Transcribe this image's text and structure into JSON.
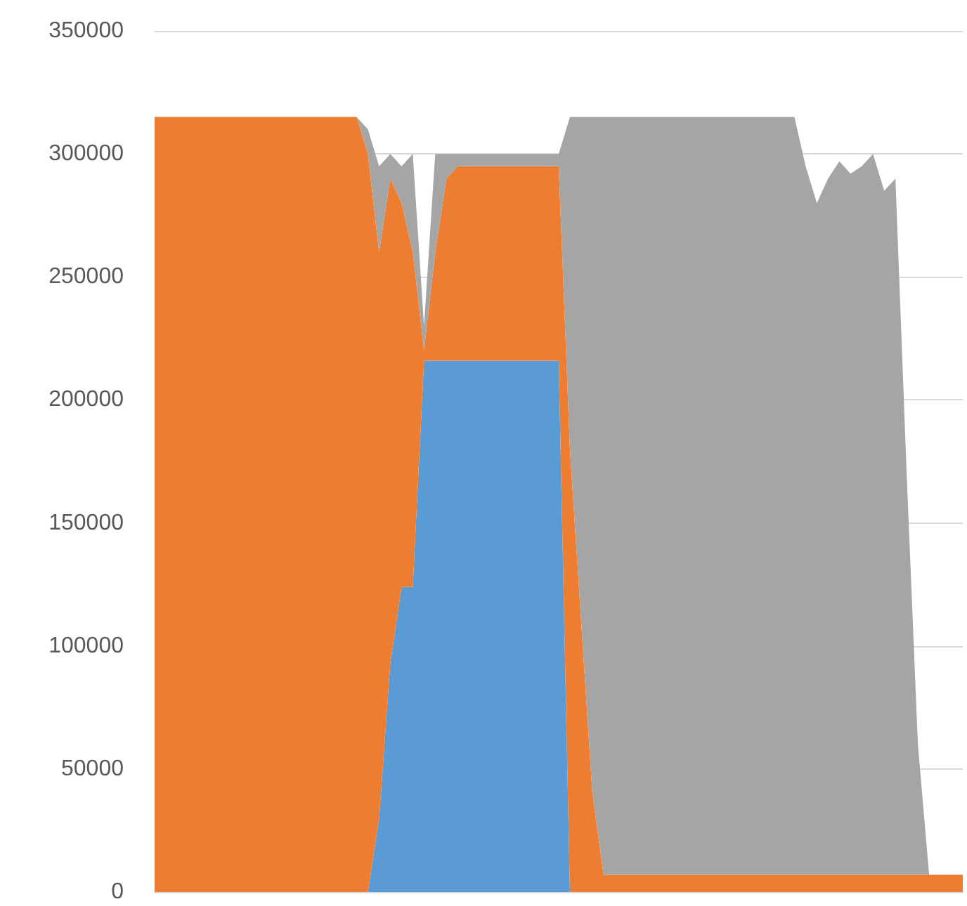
{
  "chart_data": {
    "type": "area",
    "stacked": true,
    "grid": "y",
    "marker": "none",
    "categories": [
      null,
      null,
      null,
      null,
      null,
      null,
      null,
      null,
      null,
      null,
      null,
      null,
      null,
      null,
      null,
      null,
      null,
      null,
      null,
      null,
      null,
      null,
      null,
      null,
      null,
      null,
      null,
      null,
      null,
      null,
      null,
      null,
      null,
      null,
      null,
      null,
      null,
      null,
      null,
      null,
      null,
      null,
      null,
      null,
      null,
      null,
      null,
      null,
      null,
      null,
      null,
      null,
      null,
      null,
      null,
      null,
      null,
      null,
      null,
      null,
      null,
      null,
      null,
      null,
      null,
      null,
      null,
      null,
      null,
      null,
      null,
      null,
      null
    ],
    "ylim": [
      0,
      350000
    ],
    "yticks": [
      0,
      50000,
      100000,
      150000,
      200000,
      250000,
      300000,
      350000
    ],
    "series": [
      {
        "color": "#5b9bd5",
        "values": [
          0,
          0,
          0,
          0,
          0,
          0,
          0,
          0,
          0,
          0,
          0,
          0,
          0,
          0,
          0,
          0,
          0,
          0,
          0,
          0,
          30000,
          93000,
          124000,
          124000,
          216000,
          216000,
          216000,
          216000,
          216000,
          216000,
          216000,
          216000,
          216000,
          216000,
          216000,
          216000,
          216000,
          0,
          0,
          0,
          0,
          0,
          0,
          0,
          0,
          0,
          0,
          0,
          0,
          0,
          0,
          0,
          0,
          0,
          0,
          0,
          0,
          0,
          0,
          0,
          0,
          0,
          0,
          0,
          0,
          0,
          0,
          0,
          0,
          0,
          0,
          0,
          0
        ]
      },
      {
        "color": "#ed7d31",
        "values": [
          315000,
          315000,
          315000,
          315000,
          315000,
          315000,
          315000,
          315000,
          315000,
          315000,
          315000,
          315000,
          315000,
          315000,
          315000,
          315000,
          315000,
          315000,
          315000,
          300000,
          230000,
          197000,
          156000,
          136000,
          4000,
          44000,
          74000,
          79000,
          79000,
          79000,
          79000,
          79000,
          79000,
          79000,
          79000,
          79000,
          79000,
          180000,
          110000,
          40000,
          7000,
          7000,
          7000,
          7000,
          7000,
          7000,
          7000,
          7000,
          7000,
          7000,
          7000,
          7000,
          7000,
          7000,
          7000,
          7000,
          7000,
          7000,
          7000,
          7000,
          7000,
          7000,
          7000,
          7000,
          7000,
          7000,
          7000,
          7000,
          7000,
          7000,
          7000,
          7000,
          7000
        ]
      },
      {
        "color": "#a5a5a5",
        "values": [
          0,
          0,
          0,
          0,
          0,
          0,
          0,
          0,
          0,
          0,
          0,
          0,
          0,
          0,
          0,
          0,
          0,
          0,
          0,
          10000,
          35000,
          10000,
          15000,
          40000,
          10000,
          40000,
          10000,
          5000,
          5000,
          5000,
          5000,
          5000,
          5000,
          5000,
          5000,
          5000,
          5000,
          135000,
          205000,
          275000,
          308000,
          308000,
          308000,
          308000,
          308000,
          308000,
          308000,
          308000,
          308000,
          308000,
          308000,
          308000,
          308000,
          308000,
          308000,
          308000,
          308000,
          308000,
          288000,
          273000,
          283000,
          290000,
          285000,
          288000,
          293000,
          278000,
          283000,
          163000,
          53000,
          0,
          0,
          0,
          0
        ]
      }
    ]
  }
}
